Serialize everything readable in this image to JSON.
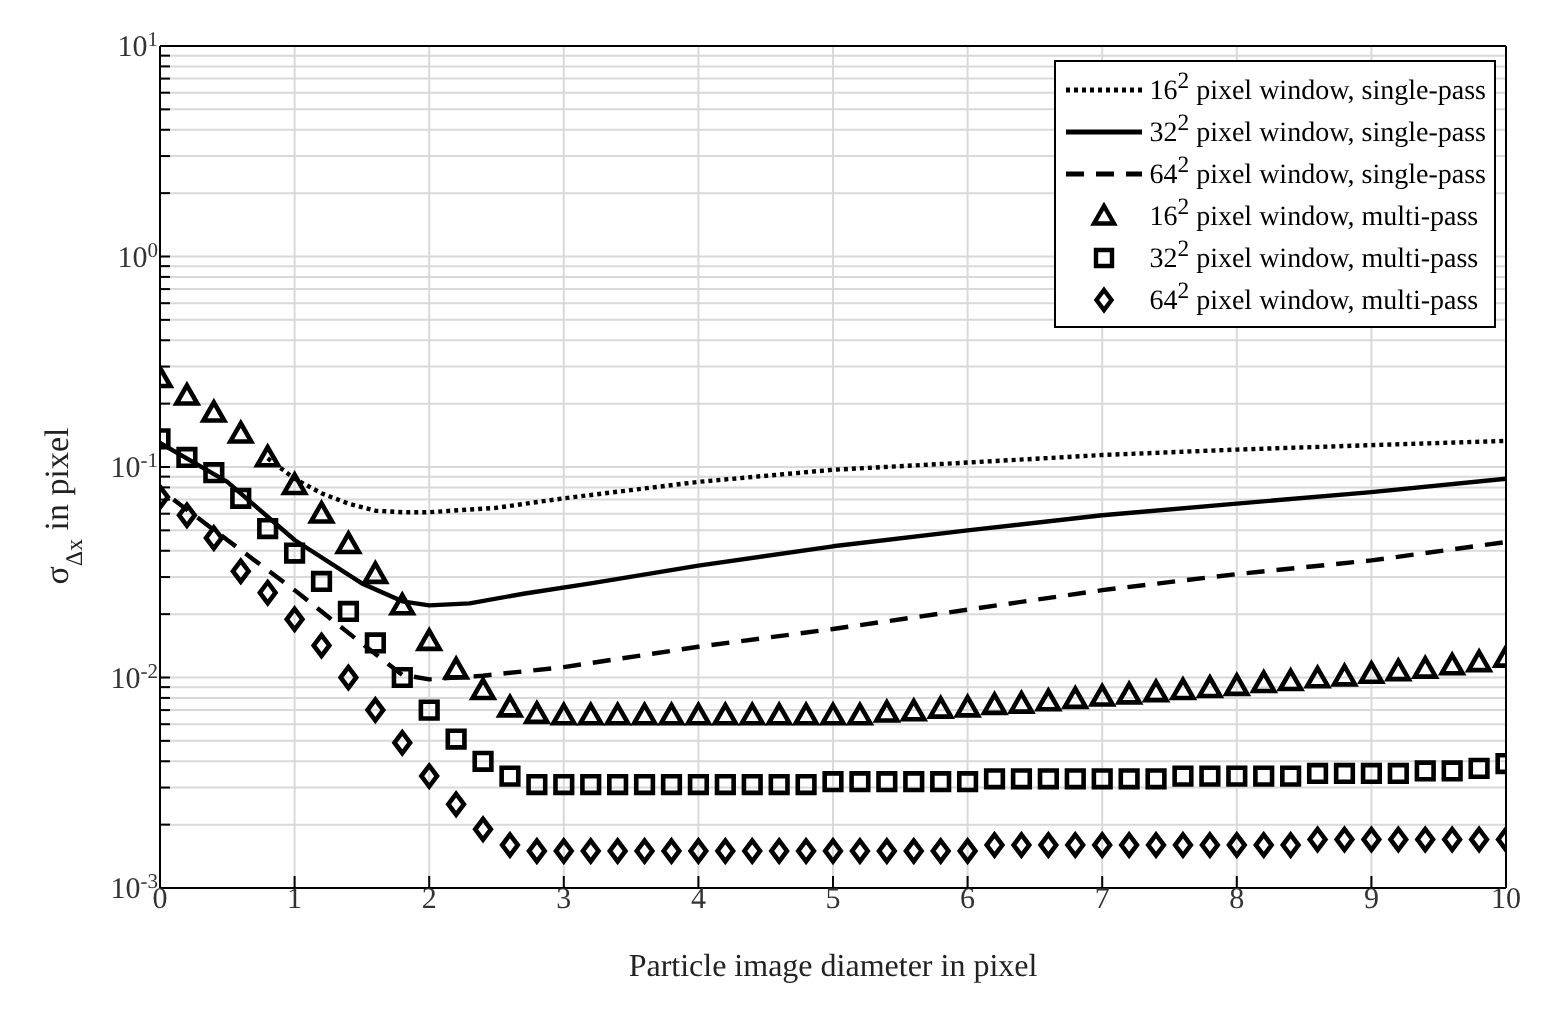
{
  "chart_data": {
    "type": "line",
    "xlabel": "Particle image diameter in pixel",
    "ylabel": "σ$_{Δx}$ in pixel",
    "log": "y",
    "grid": true,
    "legend": "top right",
    "xlim": [
      0,
      10
    ],
    "xticks": [
      0,
      1,
      2,
      3,
      4,
      5,
      6,
      7,
      8,
      9,
      10
    ],
    "ylim": [
      0.001,
      10
    ],
    "yticks": [
      {
        "value": 0.001,
        "label": "10$^{-3}$"
      },
      {
        "value": 0.002,
        "label": null
      },
      {
        "value": 0.003,
        "label": null
      },
      {
        "value": 0.004,
        "label": null
      },
      {
        "value": 0.005,
        "label": null
      },
      {
        "value": 0.006,
        "label": null
      },
      {
        "value": 0.007,
        "label": null
      },
      {
        "value": 0.008,
        "label": null
      },
      {
        "value": 0.009,
        "label": null
      },
      {
        "value": 0.01,
        "label": "10$^{-2}$"
      },
      {
        "value": 0.02,
        "label": null
      },
      {
        "value": 0.03,
        "label": null
      },
      {
        "value": 0.04,
        "label": null
      },
      {
        "value": 0.05,
        "label": null
      },
      {
        "value": 0.06,
        "label": null
      },
      {
        "value": 0.07,
        "label": null
      },
      {
        "value": 0.08,
        "label": null
      },
      {
        "value": 0.09,
        "label": null
      },
      {
        "value": 0.1,
        "label": "10$^{-1}$"
      },
      {
        "value": 0.2,
        "label": null
      },
      {
        "value": 0.3,
        "label": null
      },
      {
        "value": 0.4,
        "label": null
      },
      {
        "value": 0.5,
        "label": null
      },
      {
        "value": 0.6,
        "label": null
      },
      {
        "value": 0.7,
        "label": null
      },
      {
        "value": 0.8,
        "label": null
      },
      {
        "value": 0.9,
        "label": null
      },
      {
        "value": 1,
        "label": "10$^{0}$"
      },
      {
        "value": 2,
        "label": null
      },
      {
        "value": 3,
        "label": null
      },
      {
        "value": 4,
        "label": null
      },
      {
        "value": 5,
        "label": null
      },
      {
        "value": 6,
        "label": null
      },
      {
        "value": 7,
        "label": null
      },
      {
        "value": 8,
        "label": null
      },
      {
        "value": 9,
        "label": null
      },
      {
        "value": 10,
        "label": "10$^{1}$"
      }
    ],
    "series": [
      {
        "name": "16$^{2}$ pixel window, single-pass",
        "line_style": "dotted",
        "marker": "none",
        "color": "#000000",
        "x": [
          0.8,
          1,
          1.2,
          1.4,
          1.6,
          1.8,
          2,
          2.5,
          3,
          4,
          5,
          6,
          7,
          8,
          9,
          10
        ],
        "values": [
          0.11,
          0.088,
          0.075,
          0.067,
          0.062,
          0.061,
          0.061,
          0.064,
          0.071,
          0.085,
          0.097,
          0.105,
          0.114,
          0.121,
          0.127,
          0.133
        ]
      },
      {
        "name": "32$^{2}$ pixel window, single-pass",
        "line_style": "solid",
        "marker": "none",
        "color": "#000000",
        "x": [
          0,
          0.5,
          1,
          1.5,
          1.8,
          2,
          2.3,
          2.7,
          3.2,
          4,
          5,
          6,
          7,
          8,
          9,
          10
        ],
        "values": [
          0.13,
          0.085,
          0.045,
          0.028,
          0.023,
          0.022,
          0.0225,
          0.025,
          0.028,
          0.034,
          0.042,
          0.05,
          0.059,
          0.067,
          0.076,
          0.088
        ]
      },
      {
        "name": "64$^{2}$ pixel window, single-pass",
        "line_style": "dashed",
        "marker": "none",
        "color": "#000000",
        "x": [
          0.1,
          0.5,
          1,
          1.5,
          1.8,
          2,
          2.4,
          3,
          4,
          5,
          6,
          7,
          8,
          9,
          10
        ],
        "values": [
          0.07,
          0.045,
          0.026,
          0.0145,
          0.0103,
          0.0098,
          0.0102,
          0.0112,
          0.014,
          0.017,
          0.021,
          0.026,
          0.031,
          0.036,
          0.044
        ]
      },
      {
        "name": "16$^{2}$ pixel window, multi-pass",
        "type": "scatter",
        "marker": "triangle",
        "color": "#000000",
        "x": [
          0,
          0.2,
          0.4,
          0.6,
          0.8,
          1,
          1.2,
          1.4,
          1.6,
          1.8,
          2,
          2.2,
          2.4,
          2.6,
          2.8,
          3,
          3.2,
          3.4,
          3.6,
          3.8,
          4,
          4.2,
          4.4,
          4.6,
          4.8,
          5,
          5.2,
          5.4,
          5.6,
          5.8,
          6,
          6.2,
          6.4,
          6.6,
          6.8,
          7,
          7.2,
          7.4,
          7.6,
          7.8,
          8,
          8.2,
          8.4,
          8.6,
          8.8,
          9,
          9.2,
          9.4,
          9.6,
          9.8,
          10
        ],
        "values": [
          0.264,
          0.218,
          0.181,
          0.144,
          0.111,
          0.082,
          0.06,
          0.043,
          0.031,
          0.022,
          0.0149,
          0.0109,
          0.0087,
          0.0072,
          0.0067,
          0.0066,
          0.0066,
          0.0066,
          0.0066,
          0.0066,
          0.0066,
          0.0066,
          0.0066,
          0.0066,
          0.0066,
          0.0066,
          0.0066,
          0.0068,
          0.0069,
          0.0071,
          0.0072,
          0.0074,
          0.0075,
          0.0077,
          0.0079,
          0.0081,
          0.0083,
          0.0085,
          0.0087,
          0.0089,
          0.0091,
          0.0094,
          0.0096,
          0.0099,
          0.0101,
          0.0104,
          0.0107,
          0.011,
          0.0114,
          0.0118,
          0.0124
        ]
      },
      {
        "name": "32$^{2}$ pixel window, multi-pass",
        "type": "scatter",
        "marker": "square",
        "color": "#000000",
        "x": [
          0,
          0.2,
          0.4,
          0.6,
          0.8,
          1,
          1.2,
          1.4,
          1.6,
          1.8,
          2,
          2.2,
          2.4,
          2.6,
          2.8,
          3,
          3.2,
          3.4,
          3.6,
          3.8,
          4,
          4.2,
          4.4,
          4.6,
          4.8,
          5,
          5.2,
          5.4,
          5.6,
          5.8,
          6,
          6.2,
          6.4,
          6.6,
          6.8,
          7,
          7.2,
          7.4,
          7.6,
          7.8,
          8,
          8.2,
          8.4,
          8.6,
          8.8,
          9,
          9.2,
          9.4,
          9.6,
          9.8,
          10
        ],
        "values": [
          0.136,
          0.111,
          0.094,
          0.071,
          0.051,
          0.039,
          0.0286,
          0.0206,
          0.0146,
          0.01,
          0.007,
          0.0051,
          0.004,
          0.0034,
          0.0031,
          0.0031,
          0.0031,
          0.0031,
          0.0031,
          0.0031,
          0.0031,
          0.0031,
          0.0031,
          0.0031,
          0.0031,
          0.0032,
          0.0032,
          0.0032,
          0.0032,
          0.0032,
          0.0032,
          0.0033,
          0.0033,
          0.0033,
          0.0033,
          0.0033,
          0.0033,
          0.0033,
          0.0034,
          0.0034,
          0.0034,
          0.0034,
          0.0034,
          0.0035,
          0.0035,
          0.0035,
          0.0035,
          0.0036,
          0.0036,
          0.0037,
          0.0039
        ]
      },
      {
        "name": "64$^{2}$ pixel window, multi-pass",
        "type": "scatter",
        "marker": "diamond",
        "color": "#000000",
        "x": [
          0,
          0.2,
          0.4,
          0.6,
          0.8,
          1,
          1.2,
          1.4,
          1.6,
          1.8,
          2,
          2.2,
          2.4,
          2.6,
          2.8,
          3,
          3.2,
          3.4,
          3.6,
          3.8,
          4,
          4.2,
          4.4,
          4.6,
          4.8,
          5,
          5.2,
          5.4,
          5.6,
          5.8,
          6,
          6.2,
          6.4,
          6.6,
          6.8,
          7,
          7.2,
          7.4,
          7.6,
          7.8,
          8,
          8.2,
          8.4,
          8.6,
          8.8,
          9,
          9.2,
          9.4,
          9.6,
          9.8,
          10
        ],
        "values": [
          0.072,
          0.059,
          0.046,
          0.032,
          0.0253,
          0.0189,
          0.0142,
          0.01,
          0.007,
          0.0049,
          0.0034,
          0.0025,
          0.0019,
          0.0016,
          0.0015,
          0.0015,
          0.0015,
          0.0015,
          0.0015,
          0.0015,
          0.0015,
          0.0015,
          0.0015,
          0.0015,
          0.0015,
          0.0015,
          0.0015,
          0.0015,
          0.0015,
          0.0015,
          0.0015,
          0.0016,
          0.0016,
          0.0016,
          0.0016,
          0.0016,
          0.0016,
          0.0016,
          0.0016,
          0.0016,
          0.0016,
          0.0016,
          0.0016,
          0.0017,
          0.0017,
          0.0017,
          0.0017,
          0.0017,
          0.0017,
          0.0017,
          0.0017
        ]
      }
    ]
  }
}
